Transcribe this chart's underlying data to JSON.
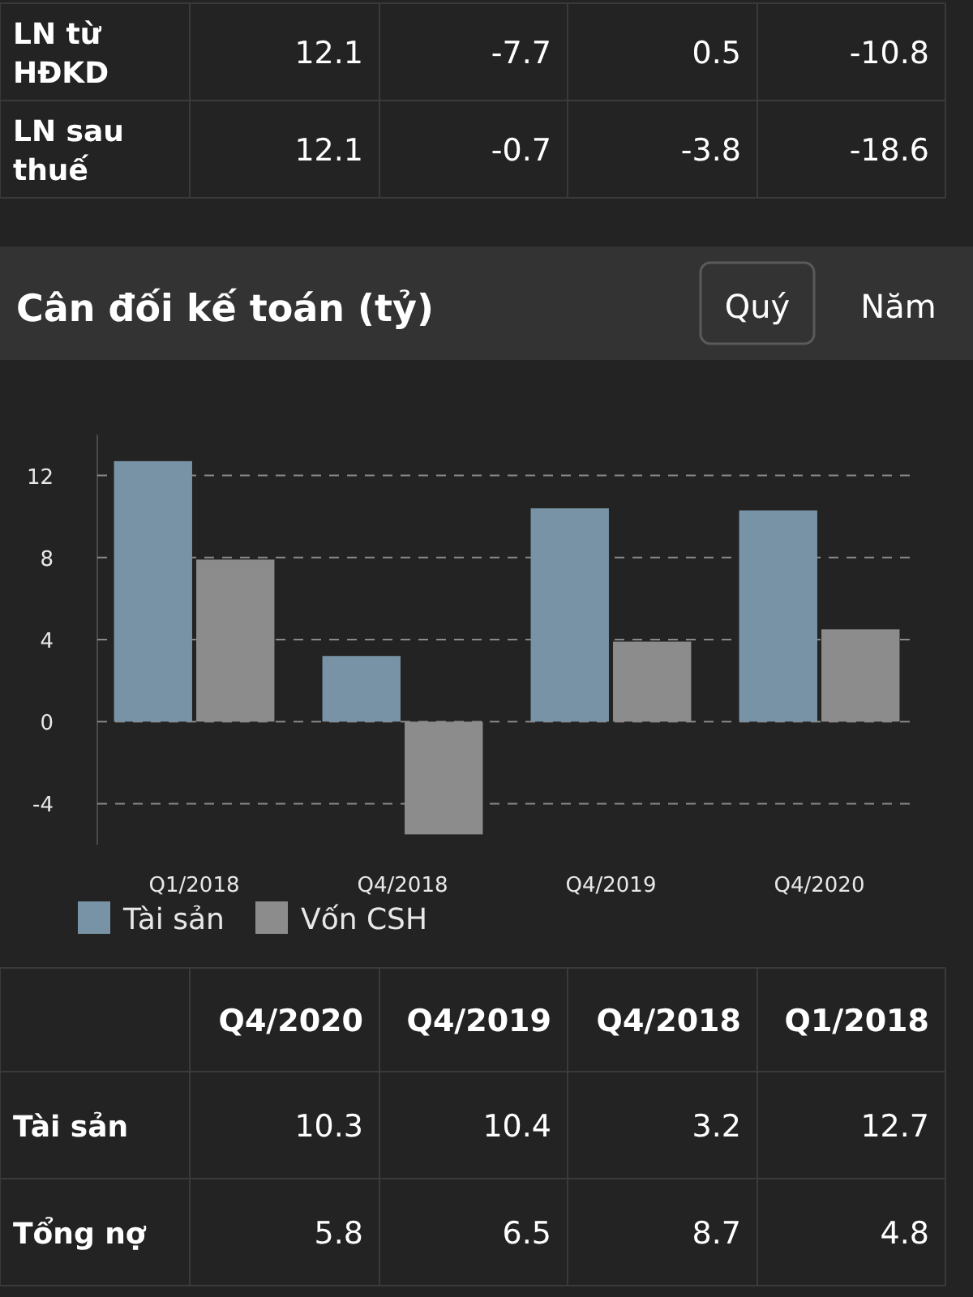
{
  "chart_data": [
    {
      "type": "other",
      "y_categories": [
        "LN từ HĐKD",
        "LN sau thuế"
      ],
      "annotations": [
        "12.1",
        "-7.7",
        "0.5",
        "-10.8",
        "12.1",
        "-0.7",
        "-3.8",
        "-18.6"
      ]
    },
    {
      "type": "bar",
      "title": "Cân đối kế toán (tỷ)",
      "annotations": [
        "Quý",
        "Năm"
      ],
      "categories": [
        "Q1/2018",
        "Q4/2018",
        "Q4/2019",
        "Q4/2020"
      ],
      "series": [
        {
          "name": "Tài sản",
          "color": "#7893a5",
          "values": [
            12.7,
            3.2,
            10.4,
            10.3
          ]
        },
        {
          "name": "Vốn CSH",
          "color": "#8c8c8c",
          "values": [
            7.9,
            -5.5,
            3.9,
            4.5
          ]
        }
      ],
      "ylim": [
        -6,
        14
      ],
      "yticks": [
        -4,
        0,
        4,
        8,
        12
      ],
      "grid": "y",
      "legend": "bottom left"
    },
    {
      "type": "other",
      "categories": [
        "Q4/2020",
        "Q4/2019",
        "Q4/2018",
        "Q1/2018"
      ],
      "y_categories": [
        "Tài sản",
        "Tổng nợ"
      ],
      "annotations": [
        "10.3",
        "10.4",
        "3.2",
        "12.7",
        "5.8",
        "6.5",
        "8.7",
        "4.8"
      ]
    }
  ]
}
